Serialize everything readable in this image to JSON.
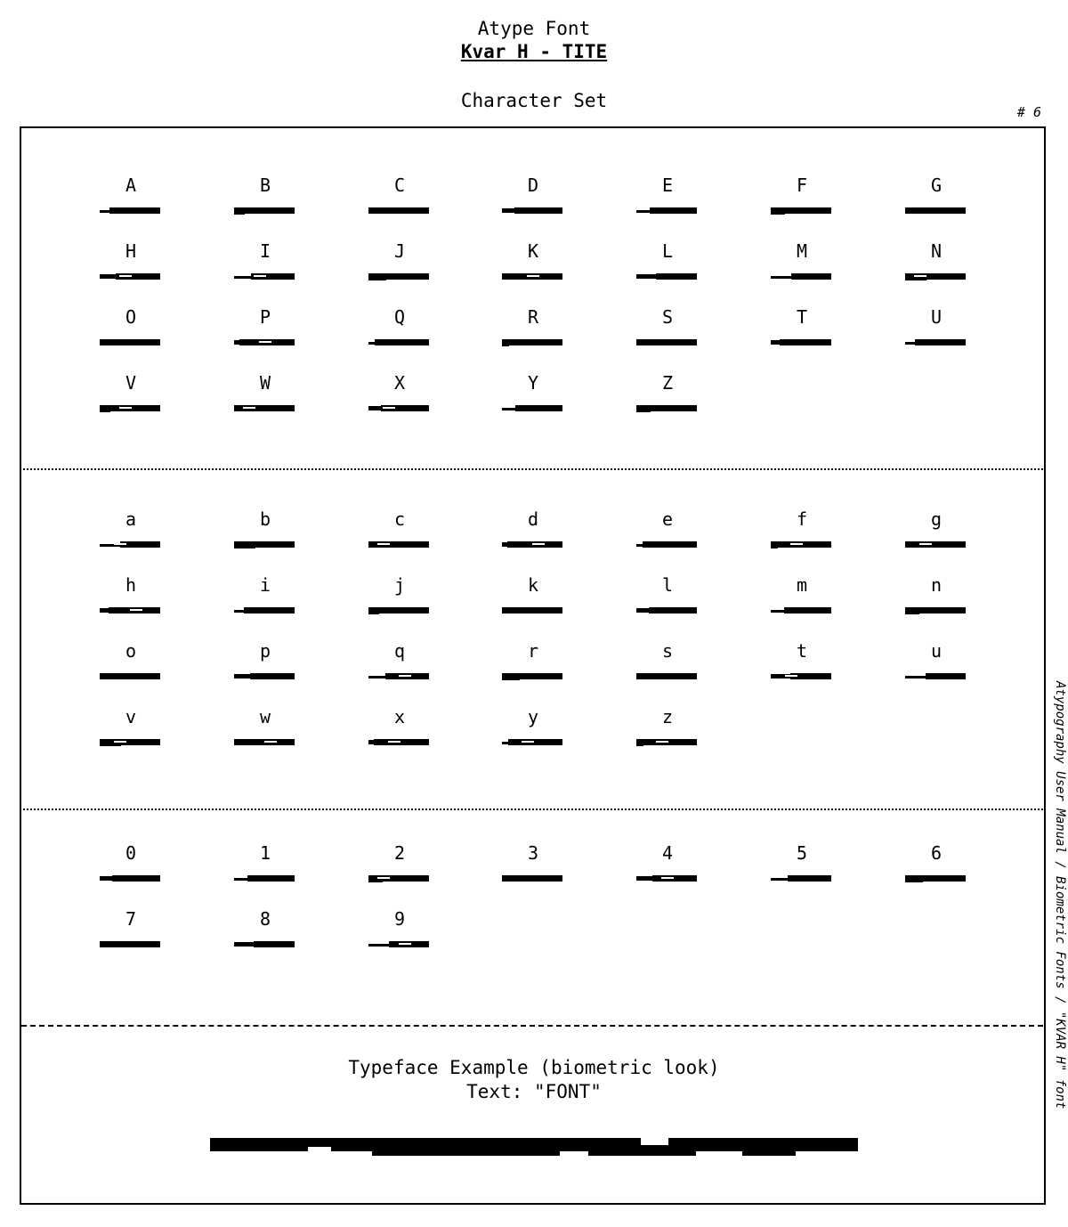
{
  "header": {
    "title": "Atype Font",
    "subtitle": "Kvar H - TITE",
    "section": "Character Set",
    "page_number": "# 6"
  },
  "side_text": "Atypography User Manual / Biometric Fonts / \"KVAR H\" font",
  "character_set": {
    "uppercase": [
      "A",
      "B",
      "C",
      "D",
      "E",
      "F",
      "G",
      "H",
      "I",
      "J",
      "K",
      "L",
      "M",
      "N",
      "O",
      "P",
      "Q",
      "R",
      "S",
      "T",
      "U",
      "V",
      "W",
      "X",
      "Y",
      "Z"
    ],
    "lowercase": [
      "a",
      "b",
      "c",
      "d",
      "e",
      "f",
      "g",
      "h",
      "i",
      "j",
      "k",
      "l",
      "m",
      "n",
      "o",
      "p",
      "q",
      "r",
      "s",
      "t",
      "u",
      "v",
      "w",
      "x",
      "y",
      "z"
    ],
    "digits": [
      "0",
      "1",
      "2",
      "3",
      "4",
      "5",
      "6",
      "7",
      "8",
      "9"
    ]
  },
  "example": {
    "title": "Typeface Example (biometric look)",
    "text_line": "Text: \"FONT\""
  }
}
